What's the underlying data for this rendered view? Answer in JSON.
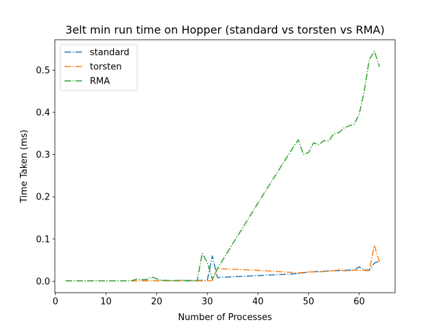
{
  "chart_data": {
    "type": "line",
    "title": "3elt min run time on Hopper (standard vs torsten vs RMA)",
    "xlabel": "Number of Processes",
    "ylabel": "Time Taken (ms)",
    "xlim": [
      -0.1,
      67.1
    ],
    "ylim": [
      -0.027,
      0.572
    ],
    "xticks": [
      0,
      10,
      20,
      30,
      40,
      50,
      60
    ],
    "yticks": [
      0.0,
      0.1,
      0.2,
      0.3,
      0.4,
      0.5
    ],
    "ytick_labels": [
      "0.0",
      "0.1",
      "0.2",
      "0.3",
      "0.4",
      "0.5"
    ],
    "grid": false,
    "legend_position": "top-left",
    "line_style": "dash-dot",
    "series": [
      {
        "name": "standard",
        "color": "#1f77b4",
        "points": [
          [
            2,
            0.001
          ],
          [
            15,
            0.001
          ],
          [
            29,
            0.002
          ],
          [
            30,
            0.002
          ],
          [
            31,
            0.06
          ],
          [
            32,
            0.009
          ],
          [
            48,
            0.018
          ],
          [
            50,
            0.022
          ],
          [
            55,
            0.025
          ],
          [
            57,
            0.026
          ],
          [
            59,
            0.027
          ],
          [
            60,
            0.034
          ],
          [
            61,
            0.027
          ],
          [
            62,
            0.026
          ],
          [
            63,
            0.043
          ],
          [
            64,
            0.048
          ]
        ]
      },
      {
        "name": "torsten",
        "color": "#ff7f0e",
        "points": [
          [
            2,
            0.001
          ],
          [
            30,
            0.001
          ],
          [
            31,
            0.002
          ],
          [
            32,
            0.03
          ],
          [
            40,
            0.026
          ],
          [
            48,
            0.02
          ],
          [
            50,
            0.022
          ],
          [
            52,
            0.022
          ],
          [
            54,
            0.024
          ],
          [
            55,
            0.025
          ],
          [
            56,
            0.028
          ],
          [
            57,
            0.025
          ],
          [
            58,
            0.025
          ],
          [
            59,
            0.026
          ],
          [
            60,
            0.026
          ],
          [
            62,
            0.025
          ],
          [
            63,
            0.085
          ],
          [
            64,
            0.046
          ]
        ]
      },
      {
        "name": "RMA",
        "color": "#2ca02c",
        "points": [
          [
            2,
            0.001
          ],
          [
            15,
            0.001
          ],
          [
            16,
            0.005
          ],
          [
            17,
            0.004
          ],
          [
            18,
            0.004
          ],
          [
            19,
            0.01
          ],
          [
            20,
            0.006
          ],
          [
            21,
            0.002
          ],
          [
            22,
            0.002
          ],
          [
            23,
            0.001
          ],
          [
            24,
            0.002
          ],
          [
            25,
            0.002
          ],
          [
            26,
            0.001
          ],
          [
            28,
            0.001
          ],
          [
            29,
            0.066
          ],
          [
            30,
            0.045
          ],
          [
            31,
            0.005
          ],
          [
            32,
            0.03
          ],
          [
            40,
            0.185
          ],
          [
            47,
            0.318
          ],
          [
            48,
            0.335
          ],
          [
            49,
            0.3
          ],
          [
            50,
            0.305
          ],
          [
            51,
            0.328
          ],
          [
            52,
            0.323
          ],
          [
            53,
            0.333
          ],
          [
            54,
            0.332
          ],
          [
            55,
            0.35
          ],
          [
            56,
            0.352
          ],
          [
            57,
            0.363
          ],
          [
            58,
            0.368
          ],
          [
            59,
            0.372
          ],
          [
            60,
            0.395
          ],
          [
            61,
            0.45
          ],
          [
            62,
            0.525
          ],
          [
            63,
            0.545
          ],
          [
            64,
            0.508
          ]
        ]
      }
    ]
  }
}
